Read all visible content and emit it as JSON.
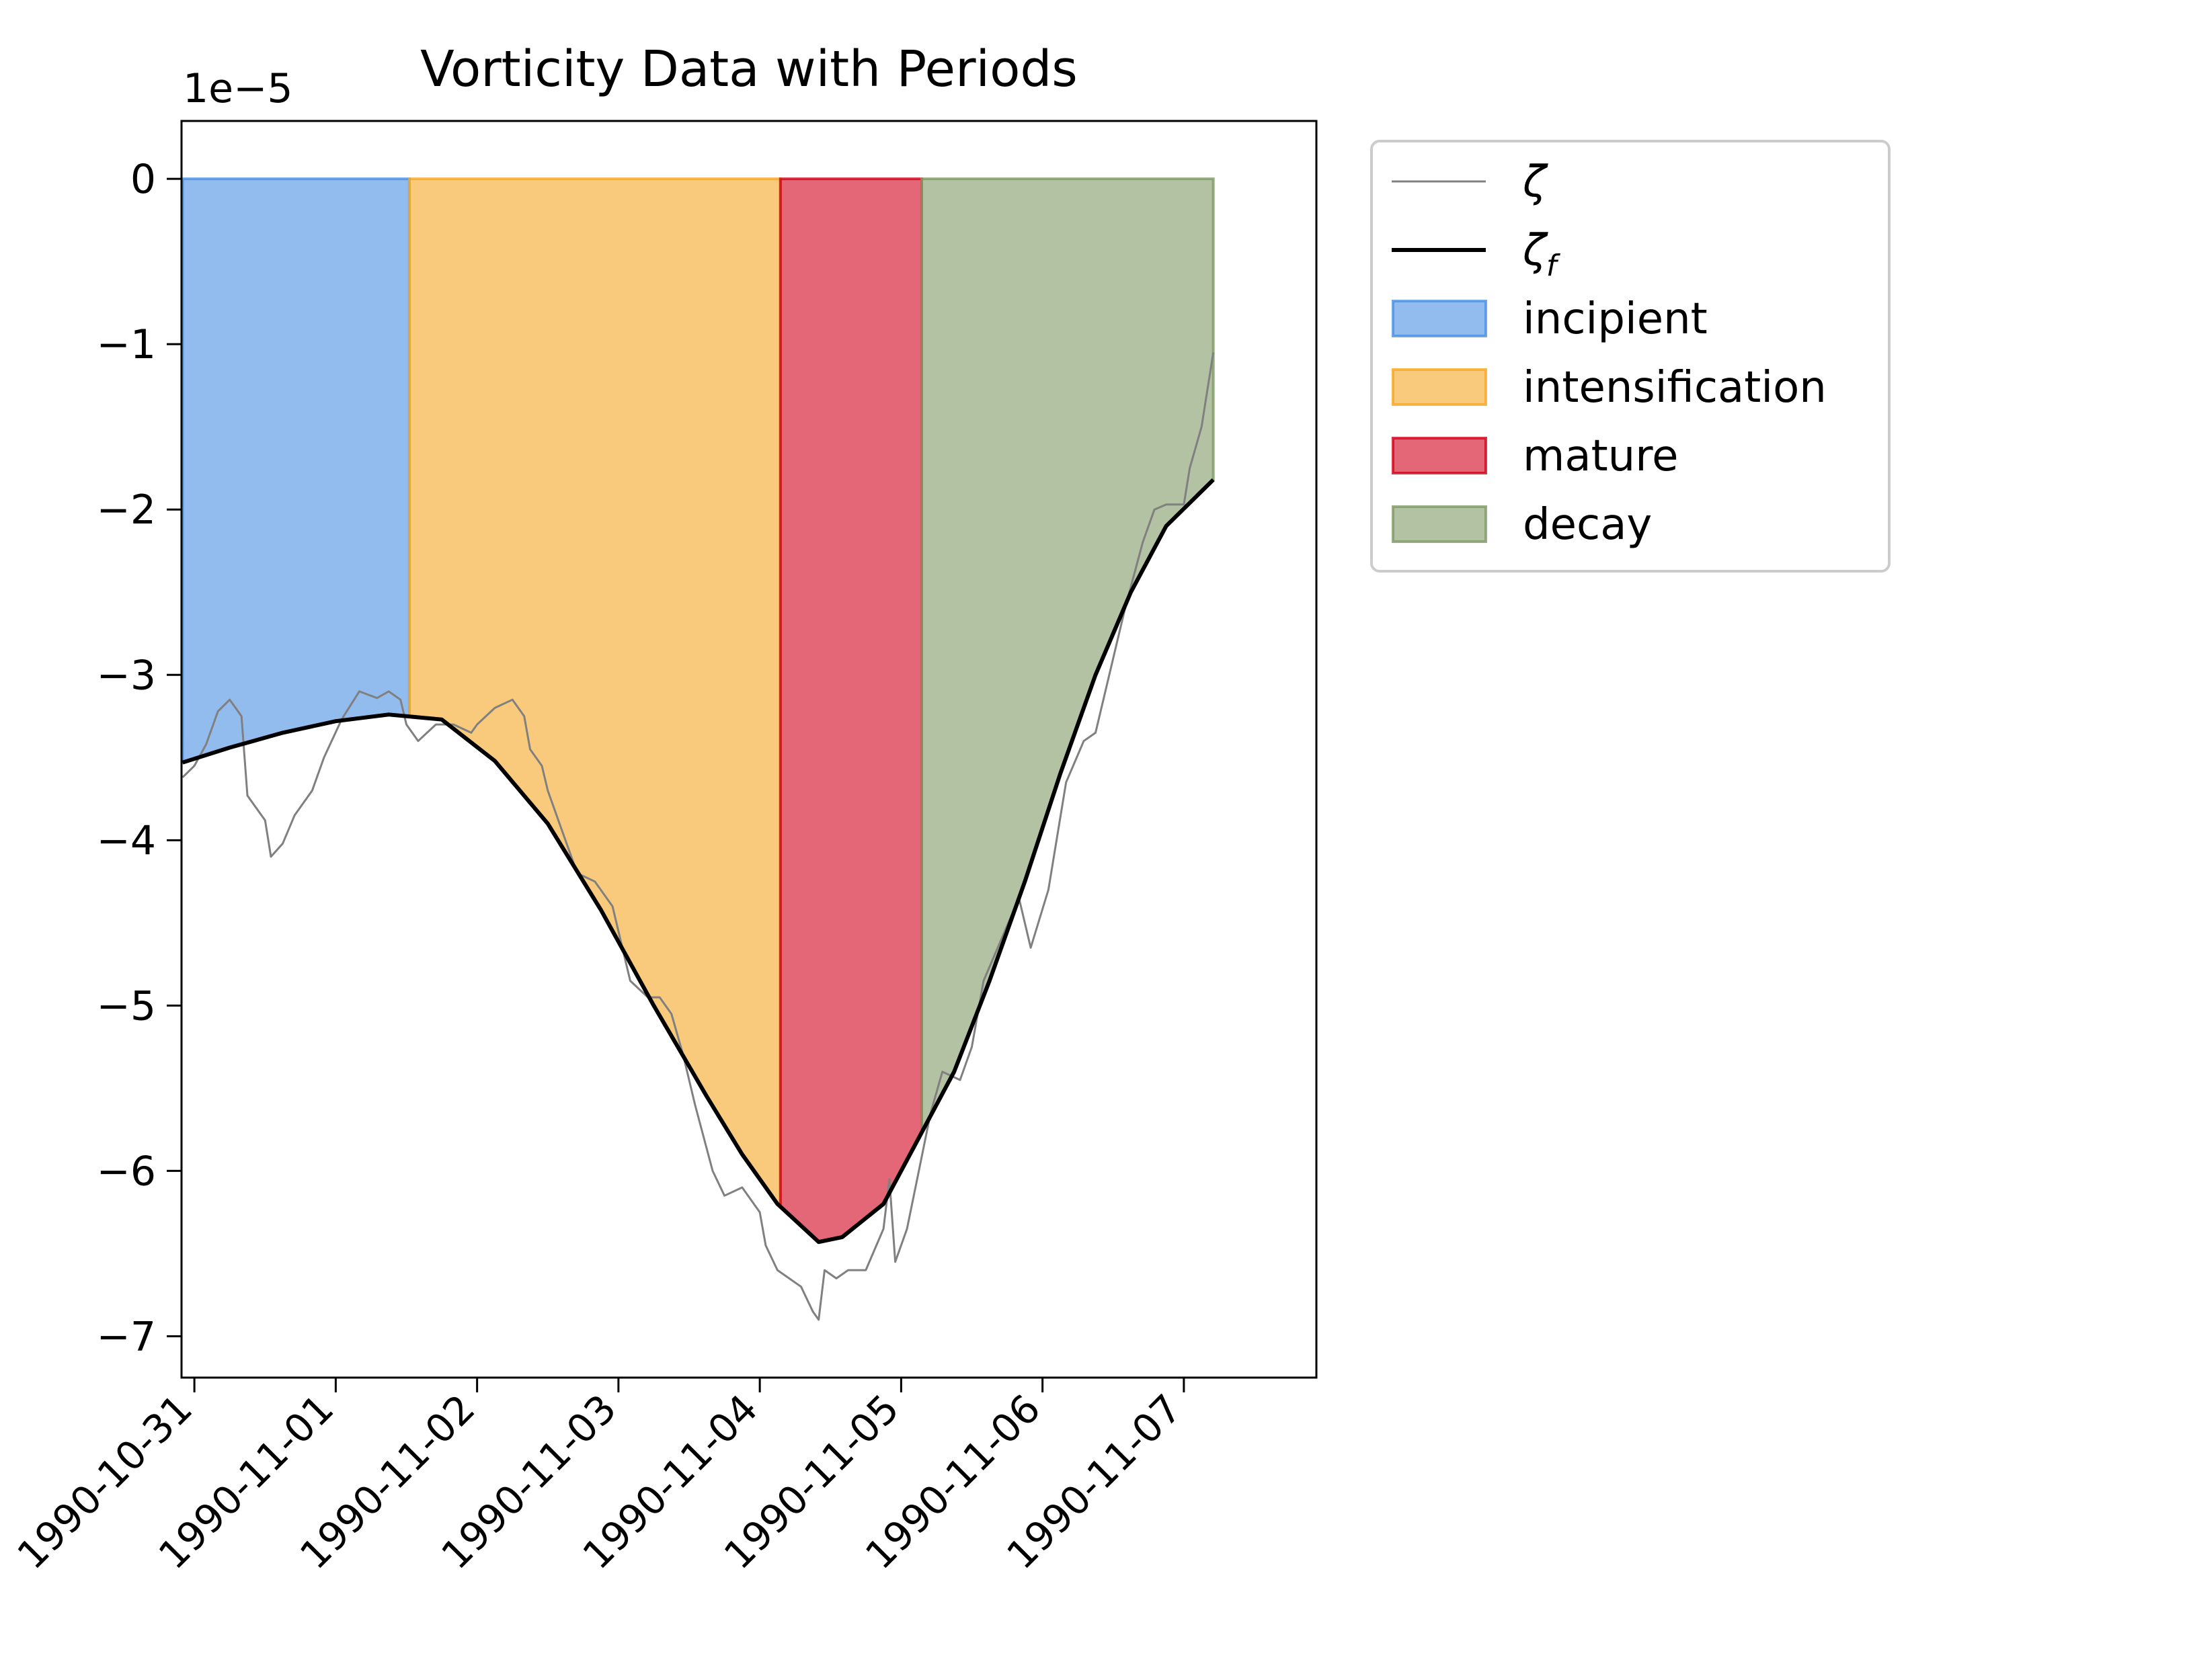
{
  "chart_data": {
    "type": "line",
    "title": "Vorticity Data with Periods",
    "offset_label": "1e−5",
    "xlabel": "",
    "ylabel": "",
    "x_is_date": true,
    "xlim": [
      "1990-10-30T21:49",
      "1990-11-07T22:30"
    ],
    "ylim": [
      -7.25,
      0.35
    ],
    "y_scale_factor": 1e-05,
    "x_ticks": [
      "1990-10-31",
      "1990-11-01",
      "1990-11-02",
      "1990-11-03",
      "1990-11-04",
      "1990-11-05",
      "1990-11-06",
      "1990-11-07"
    ],
    "y_ticks": [
      0,
      -1,
      -2,
      -3,
      -4,
      -5,
      -6,
      -7
    ],
    "y_tick_labels": [
      "0",
      "−1",
      "−2",
      "−3",
      "−4",
      "−5",
      "−6",
      "−7"
    ],
    "grid": false,
    "legend_position": "outside upper-right",
    "periods": [
      {
        "name": "incipient",
        "start": "1990-10-30T22:00",
        "end": "1990-11-01T12:30",
        "color": "#4a90e2"
      },
      {
        "name": "intensification",
        "start": "1990-11-01T12:30",
        "end": "1990-11-04T03:30",
        "color": "#f5a623"
      },
      {
        "name": "mature",
        "start": "1990-11-04T03:30",
        "end": "1990-11-05T03:30",
        "color": "#d0021b"
      },
      {
        "name": "decay",
        "start": "1990-11-05T03:30",
        "end": "1990-11-07T05:00",
        "color": "#7f9a65"
      }
    ],
    "series": [
      {
        "name": "ζ",
        "color": "#808080",
        "points": [
          [
            "1990-10-30T22:00",
            -3.62
          ],
          [
            "1990-10-31T00:00",
            -3.55
          ],
          [
            "1990-10-31T02:00",
            -3.42
          ],
          [
            "1990-10-31T04:00",
            -3.22
          ],
          [
            "1990-10-31T06:00",
            -3.15
          ],
          [
            "1990-10-31T08:00",
            -3.25
          ],
          [
            "1990-10-31T09:00",
            -3.73
          ],
          [
            "1990-10-31T12:00",
            -3.88
          ],
          [
            "1990-10-31T13:00",
            -4.1
          ],
          [
            "1990-10-31T15:00",
            -4.02
          ],
          [
            "1990-10-31T17:00",
            -3.85
          ],
          [
            "1990-10-31T20:00",
            -3.7
          ],
          [
            "1990-10-31T22:00",
            -3.5
          ],
          [
            "1990-11-01T01:00",
            -3.27
          ],
          [
            "1990-11-01T04:00",
            -3.1
          ],
          [
            "1990-11-01T07:00",
            -3.14
          ],
          [
            "1990-11-01T09:00",
            -3.1
          ],
          [
            "1990-11-01T11:00",
            -3.15
          ],
          [
            "1990-11-01T12:00",
            -3.3
          ],
          [
            "1990-11-01T14:00",
            -3.4
          ],
          [
            "1990-11-01T17:00",
            -3.3
          ],
          [
            "1990-11-01T20:00",
            -3.3
          ],
          [
            "1990-11-01T23:00",
            -3.35
          ],
          [
            "1990-11-02T00:00",
            -3.3
          ],
          [
            "1990-11-02T03:00",
            -3.2
          ],
          [
            "1990-11-02T06:00",
            -3.15
          ],
          [
            "1990-11-02T08:00",
            -3.25
          ],
          [
            "1990-11-02T09:00",
            -3.45
          ],
          [
            "1990-11-02T11:00",
            -3.55
          ],
          [
            "1990-11-02T12:00",
            -3.7
          ],
          [
            "1990-11-02T14:00",
            -3.9
          ],
          [
            "1990-11-02T17:00",
            -4.2
          ],
          [
            "1990-11-02T20:00",
            -4.25
          ],
          [
            "1990-11-02T23:00",
            -4.4
          ],
          [
            "1990-11-03T02:00",
            -4.85
          ],
          [
            "1990-11-03T05:00",
            -4.95
          ],
          [
            "1990-11-03T07:00",
            -4.95
          ],
          [
            "1990-11-03T09:00",
            -5.05
          ],
          [
            "1990-11-03T11:00",
            -5.3
          ],
          [
            "1990-11-03T13:00",
            -5.6
          ],
          [
            "1990-11-03T16:00",
            -6.0
          ],
          [
            "1990-11-03T18:00",
            -6.15
          ],
          [
            "1990-11-03T21:00",
            -6.1
          ],
          [
            "1990-11-04T00:00",
            -6.25
          ],
          [
            "1990-11-04T01:00",
            -6.45
          ],
          [
            "1990-11-04T03:00",
            -6.6
          ],
          [
            "1990-11-04T05:00",
            -6.65
          ],
          [
            "1990-11-04T07:00",
            -6.7
          ],
          [
            "1990-11-04T09:00",
            -6.85
          ],
          [
            "1990-11-04T10:00",
            -6.9
          ],
          [
            "1990-11-04T11:00",
            -6.6
          ],
          [
            "1990-11-04T13:00",
            -6.65
          ],
          [
            "1990-11-04T15:00",
            -6.6
          ],
          [
            "1990-11-04T18:00",
            -6.6
          ],
          [
            "1990-11-04T21:00",
            -6.35
          ],
          [
            "1990-11-04T22:00",
            -6.05
          ],
          [
            "1990-11-04T23:00",
            -6.55
          ],
          [
            "1990-11-05T01:00",
            -6.35
          ],
          [
            "1990-11-05T03:00",
            -6.0
          ],
          [
            "1990-11-05T05:00",
            -5.65
          ],
          [
            "1990-11-05T07:00",
            -5.4
          ],
          [
            "1990-11-05T10:00",
            -5.45
          ],
          [
            "1990-11-05T12:00",
            -5.25
          ],
          [
            "1990-11-05T14:00",
            -4.85
          ],
          [
            "1990-11-05T17:00",
            -4.6
          ],
          [
            "1990-11-05T20:00",
            -4.35
          ],
          [
            "1990-11-05T22:00",
            -4.65
          ],
          [
            "1990-11-06T01:00",
            -4.3
          ],
          [
            "1990-11-06T04:00",
            -3.65
          ],
          [
            "1990-11-06T07:00",
            -3.4
          ],
          [
            "1990-11-06T09:00",
            -3.35
          ],
          [
            "1990-11-06T11:00",
            -3.05
          ],
          [
            "1990-11-06T14:00",
            -2.6
          ],
          [
            "1990-11-06T17:00",
            -2.2
          ],
          [
            "1990-11-06T19:00",
            -2.0
          ],
          [
            "1990-11-06T21:00",
            -1.97
          ],
          [
            "1990-11-07T00:00",
            -1.97
          ],
          [
            "1990-11-07T01:00",
            -1.75
          ],
          [
            "1990-11-07T03:00",
            -1.5
          ],
          [
            "1990-11-07T05:00",
            -1.05
          ]
        ]
      },
      {
        "name": "ζ_f",
        "color": "#000000",
        "points": [
          [
            "1990-10-30T22:00",
            -3.53
          ],
          [
            "1990-10-31T06:00",
            -3.44
          ],
          [
            "1990-10-31T15:00",
            -3.35
          ],
          [
            "1990-11-01T00:00",
            -3.28
          ],
          [
            "1990-11-01T09:00",
            -3.24
          ],
          [
            "1990-11-01T18:00",
            -3.27
          ],
          [
            "1990-11-02T03:00",
            -3.52
          ],
          [
            "1990-11-02T12:00",
            -3.9
          ],
          [
            "1990-11-02T21:00",
            -4.42
          ],
          [
            "1990-11-03T06:00",
            -5.0
          ],
          [
            "1990-11-03T15:00",
            -5.55
          ],
          [
            "1990-11-03T21:00",
            -5.9
          ],
          [
            "1990-11-04T03:00",
            -6.2
          ],
          [
            "1990-11-04T10:00",
            -6.43
          ],
          [
            "1990-11-04T14:00",
            -6.4
          ],
          [
            "1990-11-04T21:00",
            -6.2
          ],
          [
            "1990-11-05T03:00",
            -5.8
          ],
          [
            "1990-11-05T09:00",
            -5.4
          ],
          [
            "1990-11-05T15:00",
            -4.85
          ],
          [
            "1990-11-05T21:00",
            -4.25
          ],
          [
            "1990-11-06T03:00",
            -3.6
          ],
          [
            "1990-11-06T09:00",
            -3.0
          ],
          [
            "1990-11-06T15:00",
            -2.5
          ],
          [
            "1990-11-06T21:00",
            -2.1
          ],
          [
            "1990-11-07T05:00",
            -1.82
          ]
        ]
      }
    ],
    "legend": [
      {
        "label": "ζ",
        "kind": "line",
        "color": "#808080"
      },
      {
        "label": "ζ",
        "sub": "f",
        "kind": "line",
        "color": "#000000"
      },
      {
        "label": "incipient",
        "kind": "patch",
        "color": "#4a90e2"
      },
      {
        "label": "intensification",
        "kind": "patch",
        "color": "#f5a623"
      },
      {
        "label": "mature",
        "kind": "patch",
        "color": "#d0021b"
      },
      {
        "label": "decay",
        "kind": "patch",
        "color": "#7f9a65"
      }
    ]
  }
}
